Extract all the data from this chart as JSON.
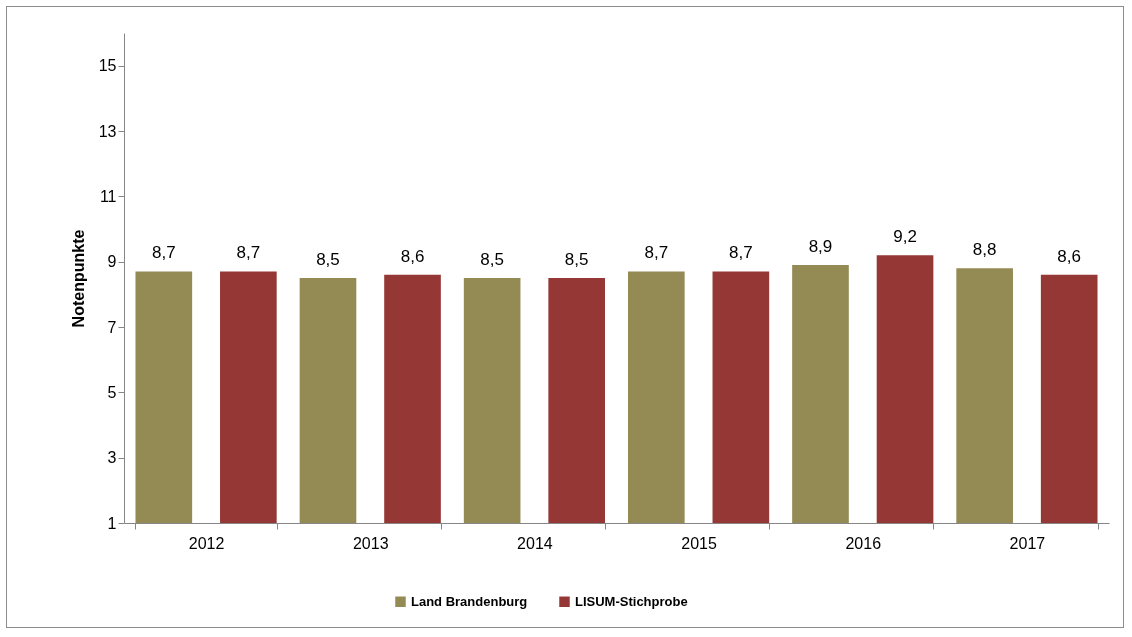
{
  "chart_data": {
    "type": "bar",
    "ylabel": "Notenpunkte",
    "categories": [
      "2012",
      "2013",
      "2014",
      "2015",
      "2016",
      "2017"
    ],
    "series": [
      {
        "name": "Land Brandenburg",
        "color": "#948a54",
        "values": [
          8.7,
          8.5,
          8.5,
          8.7,
          8.9,
          8.8
        ],
        "value_labels": [
          "8,7",
          "8,5",
          "8,5",
          "8,7",
          "8,9",
          "8,8"
        ]
      },
      {
        "name": "LISUM-Stichprobe",
        "color": "#953735",
        "values": [
          8.7,
          8.6,
          8.5,
          8.7,
          9.2,
          8.6
        ],
        "value_labels": [
          "8,7",
          "8,6",
          "8,5",
          "8,7",
          "9,2",
          "8,6"
        ]
      }
    ],
    "ylim": [
      1,
      16
    ],
    "yticks": [
      1,
      3,
      5,
      7,
      9,
      11,
      13,
      15
    ],
    "legend": "bottom"
  }
}
